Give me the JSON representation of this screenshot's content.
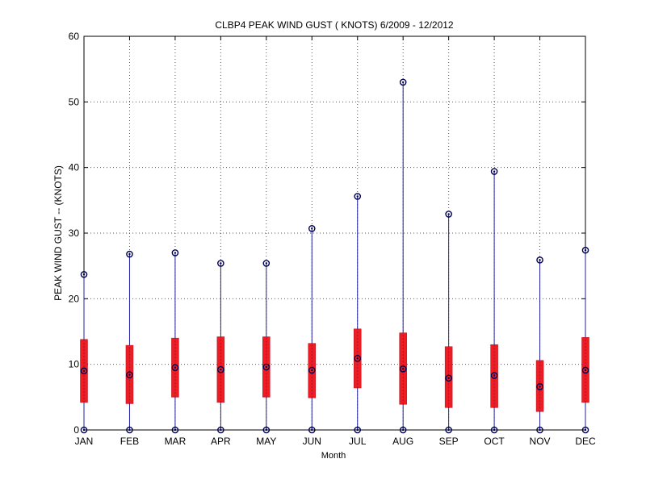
{
  "chart_data": {
    "type": "box",
    "title": "CLBP4  PEAK WIND GUST ( KNOTS) 6/2009 - 12/2012",
    "xlabel": "Month",
    "ylabel": "PEAK WIND GUST -- (KNOTS)",
    "ylim": [
      0,
      60
    ],
    "yticks": [
      "0",
      "10",
      "20",
      "30",
      "40",
      "50",
      "60"
    ],
    "grid": true,
    "categories": [
      "JAN",
      "FEB",
      "MAR",
      "APR",
      "MAY",
      "JUN",
      "JUL",
      "AUG",
      "SEP",
      "OCT",
      "NOV",
      "DEC"
    ],
    "boxes": [
      {
        "min": 0,
        "q1": 4.2,
        "median": 9.0,
        "q3": 13.8,
        "max": 23.7
      },
      {
        "min": 0,
        "q1": 4.0,
        "median": 8.4,
        "q3": 12.9,
        "max": 26.8
      },
      {
        "min": 0,
        "q1": 5.0,
        "median": 9.5,
        "q3": 14.0,
        "max": 27.0
      },
      {
        "min": 0,
        "q1": 4.2,
        "median": 9.2,
        "q3": 14.2,
        "max": 25.4
      },
      {
        "min": 0,
        "q1": 5.0,
        "median": 9.6,
        "q3": 14.2,
        "max": 25.4
      },
      {
        "min": 0,
        "q1": 4.9,
        "median": 9.1,
        "q3": 13.2,
        "max": 30.7
      },
      {
        "min": 0,
        "q1": 6.4,
        "median": 10.9,
        "q3": 15.4,
        "max": 35.6
      },
      {
        "min": 0,
        "q1": 3.9,
        "median": 9.3,
        "q3": 14.8,
        "max": 53.0
      },
      {
        "min": 0,
        "q1": 3.4,
        "median": 7.9,
        "q3": 12.7,
        "max": 32.9
      },
      {
        "min": 0,
        "q1": 3.4,
        "median": 8.3,
        "q3": 13.0,
        "max": 39.4
      },
      {
        "min": 0,
        "q1": 2.8,
        "median": 6.6,
        "q3": 10.6,
        "max": 25.9
      },
      {
        "min": 0,
        "q1": 4.2,
        "median": 9.1,
        "q3": 14.1,
        "max": 27.4
      }
    ],
    "colors": {
      "box": "#ee1c24",
      "box_edge": "#b0101a",
      "whisker": "#2020a0",
      "marker": "#000050",
      "grid": "#555555"
    }
  }
}
